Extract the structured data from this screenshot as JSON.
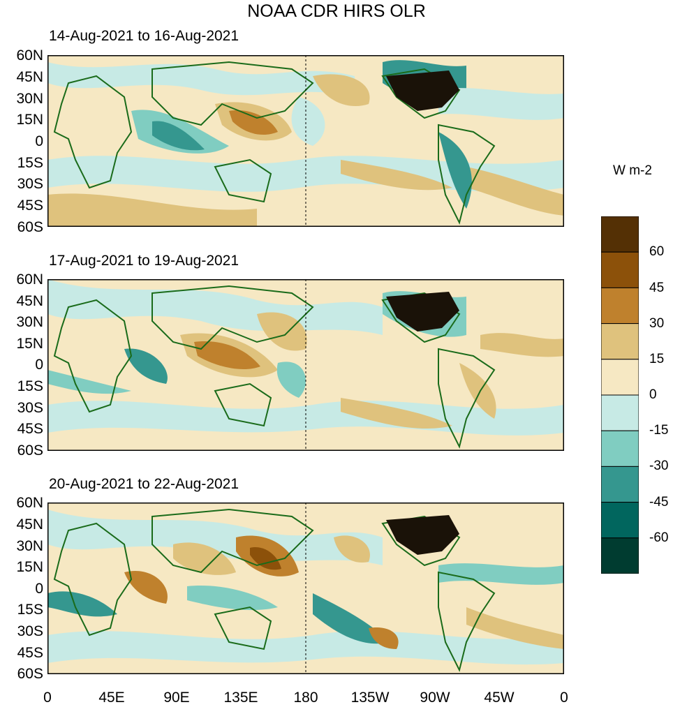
{
  "title": "NOAA CDR HIRS OLR",
  "panels": [
    {
      "label": "14-Aug-2021 to 16-Aug-2021"
    },
    {
      "label": "17-Aug-2021 to 19-Aug-2021"
    },
    {
      "label": "20-Aug-2021 to 22-Aug-2021"
    }
  ],
  "lat_labels": [
    "60N",
    "45N",
    "30N",
    "15N",
    "0",
    "15S",
    "30S",
    "45S",
    "60S"
  ],
  "lon_labels": [
    "0",
    "45E",
    "90E",
    "135E",
    "180",
    "135W",
    "90W",
    "45W",
    "0"
  ],
  "colorbar": {
    "units": "W m-2",
    "labels": [
      "60",
      "45",
      "30",
      "15",
      "0",
      "-15",
      "-30",
      "-45",
      "-60"
    ],
    "colors": [
      "#543005",
      "#8c510a",
      "#bf812d",
      "#dfc27d",
      "#f6e8c3",
      "#c7eae5",
      "#80cdc1",
      "#35978f",
      "#01665e",
      "#003c30"
    ]
  }
}
